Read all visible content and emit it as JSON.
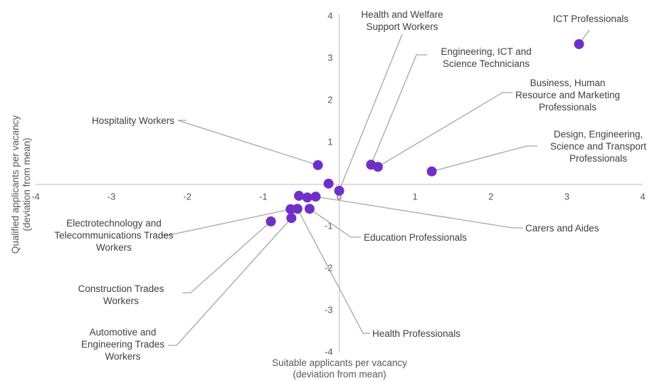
{
  "chart_data": {
    "type": "scatter",
    "x_label": "Suitable applicants per vacancy (deviation from mean)",
    "y_label": "Qualified applicants per vacancy (deviation from mean)",
    "xlim": [
      -4,
      4
    ],
    "ylim": [
      -4,
      4
    ],
    "xticks": [
      -4,
      -3,
      -2,
      -1,
      0,
      1,
      2,
      3,
      4
    ],
    "yticks": [
      -4,
      -3,
      -2,
      -1,
      1,
      2,
      3,
      4
    ],
    "color": "#7030c8",
    "x": [
      3.16,
      1.22,
      0.51,
      0.42,
      -0.28,
      -0.14,
      0.0,
      -0.53,
      -0.42,
      -0.31,
      -0.39,
      -0.64,
      -0.55,
      -0.9,
      -0.63
    ],
    "y": [
      3.34,
      0.31,
      0.42,
      0.47,
      0.46,
      0.02,
      -0.15,
      -0.27,
      -0.31,
      -0.29,
      -0.58,
      -0.59,
      -0.58,
      -0.88,
      -0.8
    ],
    "labels": [
      "ICT Professionals",
      "Design, Engineering, Science and Transport Professionals",
      "Business, Human Resource and Marketing Professionals",
      "Engineering, ICT and Science Technicians",
      "Hospitality Workers",
      null,
      "Health and Welfare Support Workers",
      null,
      null,
      "Carers and Aides",
      "Education Professionals",
      "Electrotechnology and Telecommunications Trades Workers",
      "Health Professionals",
      "Construction Trades Workers",
      "Automotive and Engineering Trades Workers"
    ]
  }
}
